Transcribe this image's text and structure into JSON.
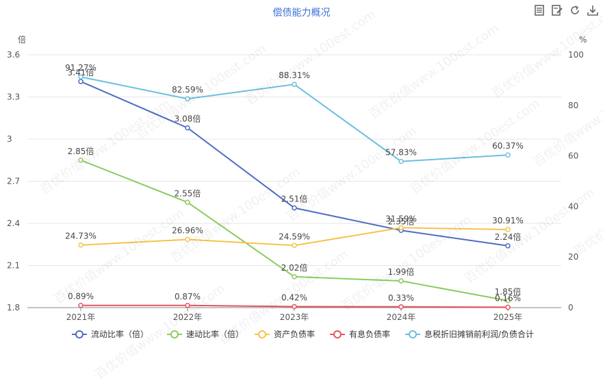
{
  "title": "偿债能力概况",
  "toolbar": {
    "icons": [
      "data-view-icon",
      "edit-icon",
      "refresh-icon",
      "download-icon"
    ]
  },
  "watermark": "百优价值www.100est.com",
  "colors": {
    "current_ratio": "#4f6cc4",
    "quick_ratio": "#8ccb5e",
    "debt_ratio": "#f6c34a",
    "interest_debt_ratio": "#e3545f",
    "ebitda_debt": "#6bbfe0",
    "title": "#3d72d6"
  },
  "chart_data": {
    "type": "line",
    "categories": [
      "2021年",
      "2022年",
      "2023年",
      "2024年",
      "2025年"
    ],
    "left_axis": {
      "unit": "倍",
      "ylim": [
        1.8,
        3.6
      ],
      "ticks": [
        "1.8",
        "2.1",
        "2.4",
        "2.7",
        "3",
        "3.3",
        "3.6"
      ]
    },
    "right_axis": {
      "unit": "%",
      "ylim": [
        0,
        100
      ],
      "ticks": [
        "0",
        "20",
        "40",
        "60",
        "80",
        "100"
      ]
    },
    "grid": true,
    "legend_position": "bottom-center",
    "series": [
      {
        "name": "流动比率（倍）",
        "axis": "left",
        "color_key": "current_ratio",
        "values": [
          3.41,
          3.08,
          2.51,
          2.35,
          2.24
        ],
        "labels": [
          "3.41倍",
          "3.08倍",
          "2.51倍",
          "2.35倍",
          "2.24倍"
        ]
      },
      {
        "name": "速动比率（倍）",
        "axis": "left",
        "color_key": "quick_ratio",
        "values": [
          2.85,
          2.55,
          2.02,
          1.99,
          1.85
        ],
        "labels": [
          "2.85倍",
          "2.55倍",
          "2.02倍",
          "1.99倍",
          "1.85倍"
        ]
      },
      {
        "name": "资产负债率",
        "axis": "right",
        "color_key": "debt_ratio",
        "values": [
          24.73,
          26.96,
          24.59,
          31.59,
          30.91
        ],
        "labels": [
          "24.73%",
          "26.96%",
          "24.59%",
          "31.59%",
          "30.91%"
        ]
      },
      {
        "name": "有息负债率",
        "axis": "right",
        "color_key": "interest_debt_ratio",
        "values": [
          0.89,
          0.87,
          0.42,
          0.33,
          0.16
        ],
        "labels": [
          "0.89%",
          "0.87%",
          "0.42%",
          "0.33%",
          "0.16%"
        ]
      },
      {
        "name": "息税折旧摊销前利润/负债合计",
        "axis": "right",
        "color_key": "ebitda_debt",
        "values": [
          91.27,
          82.59,
          88.31,
          57.83,
          60.37
        ],
        "labels": [
          "91.27%",
          "82.59%",
          "88.31%",
          "57.83%",
          "60.37%"
        ]
      }
    ]
  }
}
